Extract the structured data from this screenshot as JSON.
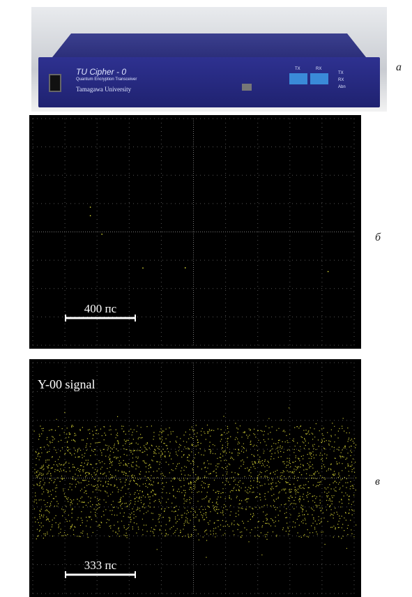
{
  "panel_a": {
    "label": "а",
    "device": {
      "model": "TU Cipher - 0",
      "subtitle": "Quantum Encryption Transceiver",
      "maker": "Tamagawa University",
      "ports": [
        "TX",
        "RX"
      ],
      "leds": [
        "TX",
        "RX",
        "Abn"
      ]
    }
  },
  "panel_b": {
    "label": "б",
    "scale": "400 пс"
  },
  "panel_c": {
    "label": "в",
    "title": "Y-00 signal",
    "scale": "333 пс"
  }
}
